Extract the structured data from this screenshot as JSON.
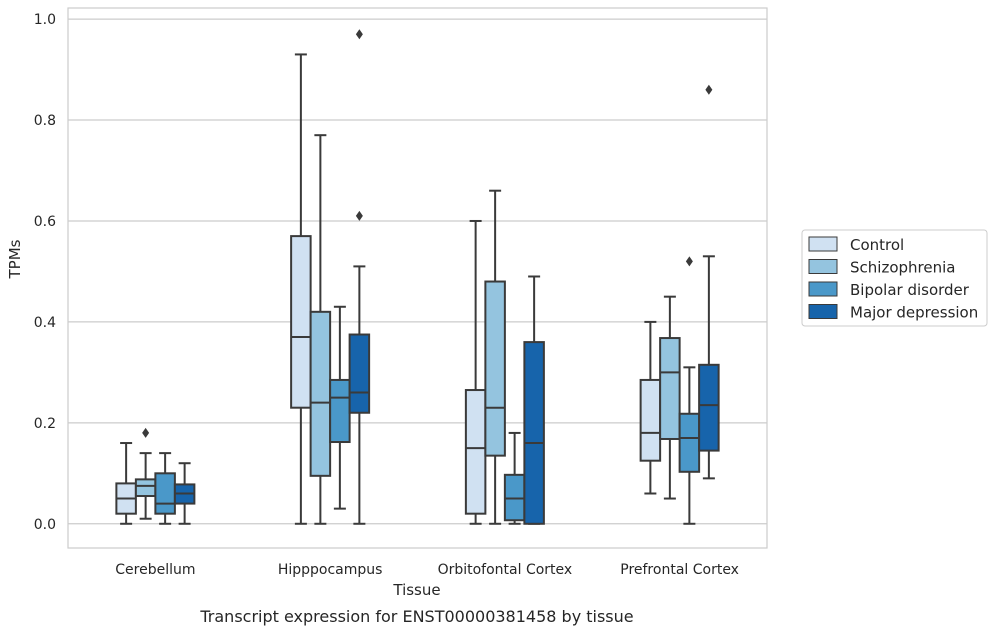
{
  "caption": "Transcript expression for ENST00000381458 by tissue",
  "chart_data": {
    "type": "box",
    "xlabel": "Tissue",
    "ylabel": "TPMs",
    "ylim": [
      -0.048,
      1.022
    ],
    "yticks": [
      "0.0",
      "0.2",
      "0.4",
      "0.6",
      "0.8",
      "1.0"
    ],
    "grid": true,
    "legend_position": "right",
    "categories": [
      "Cerebellum",
      "Hipppocampus",
      "Orbitofontal Cortex",
      "Prefrontal Cortex"
    ],
    "series": [
      {
        "name": "Control",
        "color": "#d0e1f2",
        "boxes": [
          {
            "whislo": 0.0,
            "q1": 0.02,
            "med": 0.05,
            "q3": 0.08,
            "whishi": 0.16,
            "fliers": []
          },
          {
            "whislo": 0.0,
            "q1": 0.23,
            "med": 0.37,
            "q3": 0.57,
            "whishi": 0.93,
            "fliers": []
          },
          {
            "whislo": 0.0,
            "q1": 0.02,
            "med": 0.15,
            "q3": 0.265,
            "whishi": 0.6,
            "fliers": []
          },
          {
            "whislo": 0.06,
            "q1": 0.125,
            "med": 0.18,
            "q3": 0.285,
            "whishi": 0.4,
            "fliers": []
          }
        ]
      },
      {
        "name": "Schizophrenia",
        "color": "#94c4df",
        "boxes": [
          {
            "whislo": 0.01,
            "q1": 0.055,
            "med": 0.075,
            "q3": 0.088,
            "whishi": 0.14,
            "fliers": [
              0.18
            ]
          },
          {
            "whislo": 0.0,
            "q1": 0.095,
            "med": 0.24,
            "q3": 0.42,
            "whishi": 0.77,
            "fliers": []
          },
          {
            "whislo": 0.0,
            "q1": 0.135,
            "med": 0.23,
            "q3": 0.48,
            "whishi": 0.66,
            "fliers": []
          },
          {
            "whislo": 0.05,
            "q1": 0.168,
            "med": 0.3,
            "q3": 0.368,
            "whishi": 0.45,
            "fliers": []
          }
        ]
      },
      {
        "name": "Bipolar disorder",
        "color": "#4a98c9",
        "boxes": [
          {
            "whislo": 0.0,
            "q1": 0.02,
            "med": 0.04,
            "q3": 0.1,
            "whishi": 0.14,
            "fliers": []
          },
          {
            "whislo": 0.03,
            "q1": 0.162,
            "med": 0.25,
            "q3": 0.285,
            "whishi": 0.43,
            "fliers": []
          },
          {
            "whislo": 0.0,
            "q1": 0.007,
            "med": 0.05,
            "q3": 0.097,
            "whishi": 0.18,
            "fliers": []
          },
          {
            "whislo": 0.0,
            "q1": 0.103,
            "med": 0.17,
            "q3": 0.218,
            "whishi": 0.31,
            "fliers": [
              0.52
            ]
          }
        ]
      },
      {
        "name": "Major depression",
        "color": "#1764ab",
        "boxes": [
          {
            "whislo": 0.0,
            "q1": 0.04,
            "med": 0.06,
            "q3": 0.078,
            "whishi": 0.12,
            "fliers": []
          },
          {
            "whislo": 0.0,
            "q1": 0.22,
            "med": 0.26,
            "q3": 0.375,
            "whishi": 0.51,
            "fliers": [
              0.61,
              0.97
            ]
          },
          {
            "whislo": 0.0,
            "q1": 0.0,
            "med": 0.16,
            "q3": 0.36,
            "whishi": 0.49,
            "fliers": []
          },
          {
            "whislo": 0.09,
            "q1": 0.145,
            "med": 0.235,
            "q3": 0.315,
            "whishi": 0.53,
            "fliers": [
              0.86
            ]
          }
        ]
      }
    ]
  }
}
